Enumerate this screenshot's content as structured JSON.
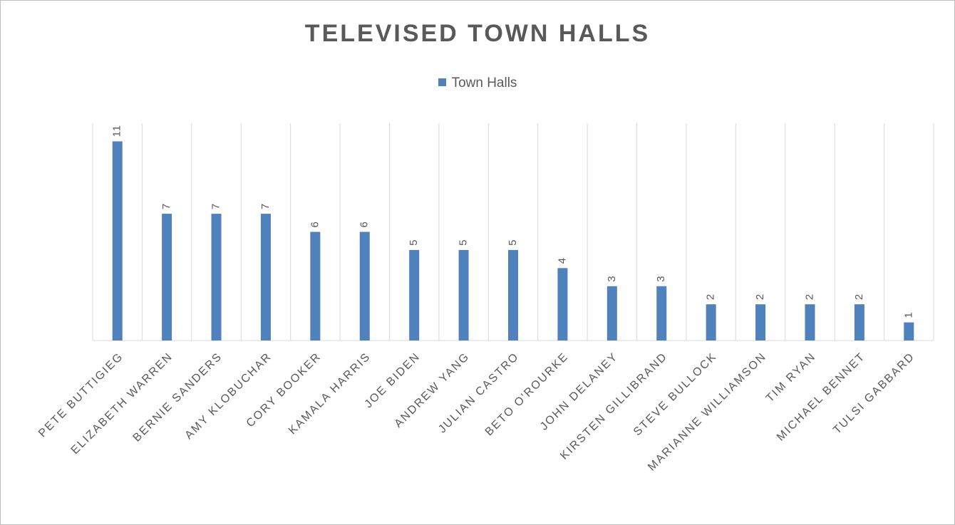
{
  "chart_data": {
    "type": "bar",
    "title": "TELEVISED TOWN HALLS",
    "xlabel": "",
    "ylabel": "",
    "legend": "top",
    "grid": "vertical category separators",
    "ylim": [
      0,
      12
    ],
    "categories": [
      "PETE BUTTIGIEG",
      "ELIZABETH WARREN",
      "BERNIE SANDERS",
      "AMY KLOBUCHAR",
      "CORY BOOKER",
      "KAMALA HARRIS",
      "JOE BIDEN",
      "ANDREW YANG",
      "JULIAN CASTRO",
      "BETO O'ROURKE",
      "JOHN DELANEY",
      "KIRSTEN GILLIBRAND",
      "STEVE BULLOCK",
      "MARIANNE WILLIAMSON",
      "TIM RYAN",
      "MICHAEL BENNET",
      "TULSI GABBARD"
    ],
    "series": [
      {
        "name": "Town Halls",
        "color": "#4f81bd",
        "values": [
          11,
          7,
          7,
          7,
          6,
          6,
          5,
          5,
          5,
          4,
          3,
          3,
          2,
          2,
          2,
          2,
          1
        ]
      }
    ]
  },
  "colors": {
    "bar": "#4f81bd",
    "text": "#595959",
    "grid": "#d9d9d9"
  }
}
